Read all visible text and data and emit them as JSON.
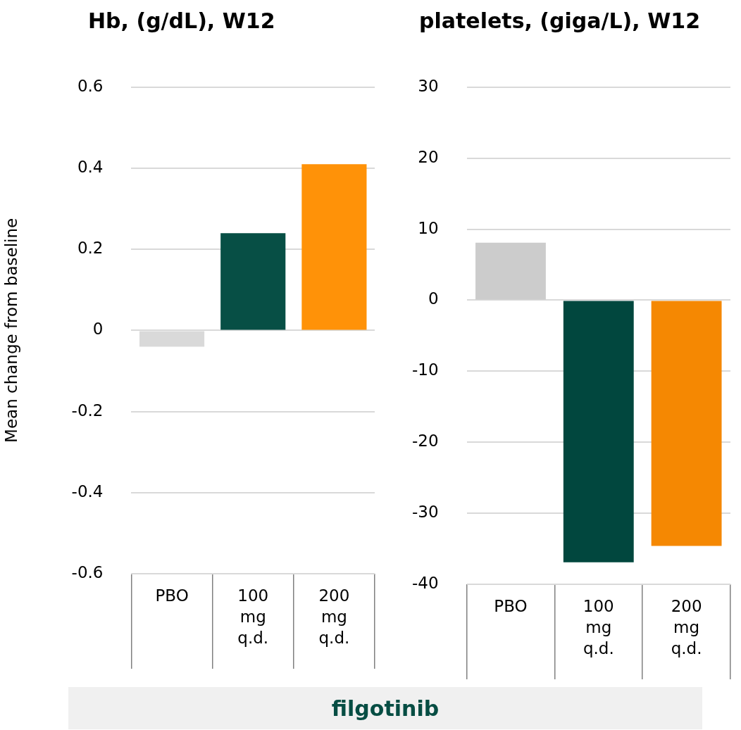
{
  "chart_data": [
    {
      "type": "bar",
      "title": "Hb, (g/dL), W12",
      "ylabel": "Mean change from baseline",
      "categories": [
        "PBO",
        "100 mg q.d.",
        "200 mg q.d."
      ],
      "values": [
        -0.04,
        0.24,
        0.41
      ],
      "colors": [
        "#d9d9d9",
        "#074f45",
        "#ff9208"
      ],
      "ylim": [
        -0.6,
        0.6
      ],
      "yticks": [
        -0.6,
        -0.4,
        -0.2,
        0,
        0.2,
        0.4,
        0.6
      ],
      "grid": "y",
      "annotations": [
        "filgotinib"
      ]
    },
    {
      "type": "bar",
      "title": "platelets, (giga/L), W12",
      "categories": [
        "PBO",
        "100 mg q.d.",
        "200 mg q.d."
      ],
      "values": [
        8.1,
        -36.9,
        -34.6
      ],
      "colors": [
        "#cccccc",
        "#01473e",
        "#f58802"
      ],
      "ylim": [
        -40,
        30
      ],
      "yticks": [
        -40,
        -30,
        -20,
        -10,
        0,
        10,
        20,
        30
      ],
      "grid": "y"
    }
  ]
}
